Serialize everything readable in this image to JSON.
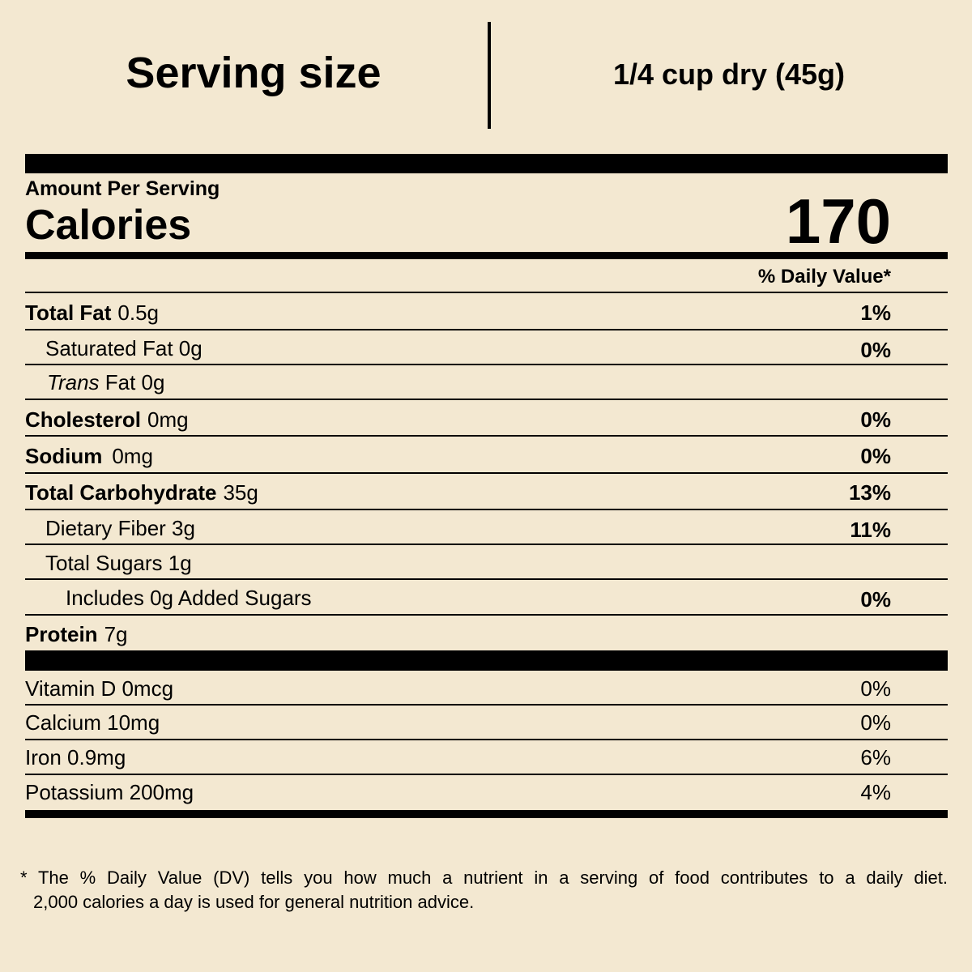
{
  "header": {
    "label": "Serving size",
    "value": "1/4 cup dry (45g)"
  },
  "calories": {
    "heading": "Amount Per Serving",
    "label": "Calories",
    "value": "170"
  },
  "dv_heading": "% Daily Value*",
  "nutrients": [
    {
      "name": "Total Fat",
      "amount": "0.5g",
      "dv": "1%"
    },
    {
      "name": "Saturated Fat 0g",
      "dv": "0%"
    },
    {
      "name": "Trans",
      "amount": "Fat 0g"
    },
    {
      "name": "Cholesterol",
      "amount": "0mg",
      "dv": "0%"
    },
    {
      "name": "Sodium",
      "amount": "0mg",
      "dv": "0%"
    },
    {
      "name": "Total Carbohydrate",
      "amount": "35g",
      "dv": "13%"
    },
    {
      "name": "Dietary Fiber 3g",
      "dv": "11%"
    },
    {
      "name": "Total Sugars 1g"
    },
    {
      "name": "Includes 0g Added Sugars",
      "dv": "0%"
    },
    {
      "name": "Protein",
      "amount": "7g"
    }
  ],
  "vitamins": [
    {
      "name": "Vitamin D 0mcg",
      "dv": "0%"
    },
    {
      "name": "Calcium 10mg",
      "dv": "0%"
    },
    {
      "name": "Iron 0.9mg",
      "dv": "6%"
    },
    {
      "name": "Potassium 200mg",
      "dv": "4%"
    }
  ],
  "footnote": [
    "* The % Daily Value (DV) tells you how much a nutrient in a serving of food contributes to a daily diet.",
    "2,000 calories a day is used for general nutrition advice."
  ]
}
